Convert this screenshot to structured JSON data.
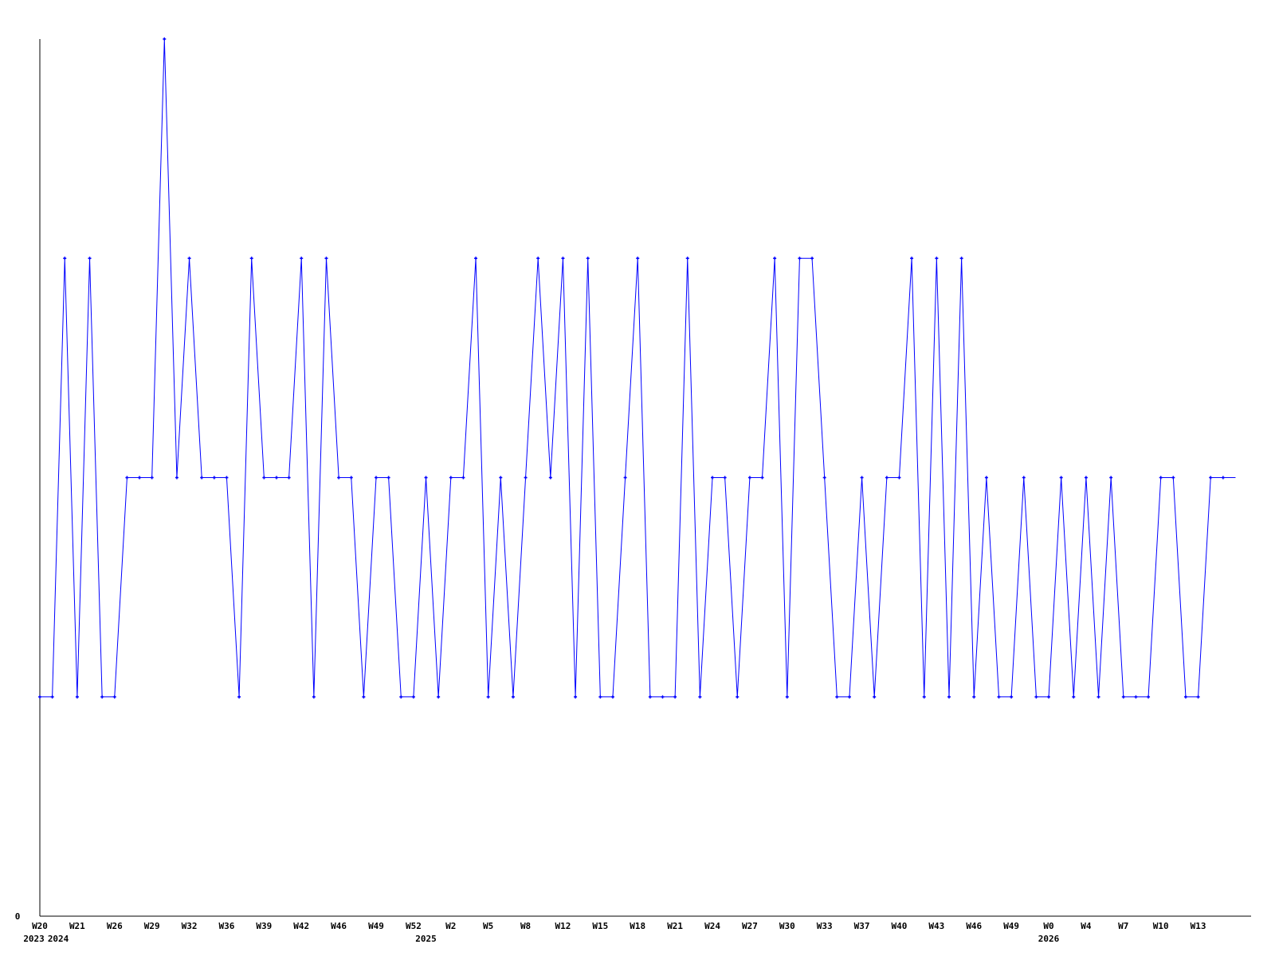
{
  "chart_data": {
    "type": "line",
    "title": "",
    "xlabel": "",
    "ylabel": "",
    "ylim": [
      0,
      4
    ],
    "y_tick_labels": [
      "0"
    ],
    "grid": false,
    "legend": "none",
    "line_color": "#0000ff",
    "axis_color": "#000000",
    "x_tick_labels": [
      {
        "index": 0,
        "label": "W20"
      },
      {
        "index": 3,
        "label": "W21"
      },
      {
        "index": 6,
        "label": "W26"
      },
      {
        "index": 9,
        "label": "W29"
      },
      {
        "index": 12,
        "label": "W32"
      },
      {
        "index": 15,
        "label": "W36"
      },
      {
        "index": 18,
        "label": "W39"
      },
      {
        "index": 21,
        "label": "W42"
      },
      {
        "index": 24,
        "label": "W46"
      },
      {
        "index": 27,
        "label": "W49"
      },
      {
        "index": 30,
        "label": "W52"
      },
      {
        "index": 33,
        "label": "W2"
      },
      {
        "index": 36,
        "label": "W5"
      },
      {
        "index": 39,
        "label": "W8"
      },
      {
        "index": 42,
        "label": "W12"
      },
      {
        "index": 45,
        "label": "W15"
      },
      {
        "index": 48,
        "label": "W18"
      },
      {
        "index": 51,
        "label": "W21"
      },
      {
        "index": 54,
        "label": "W24"
      },
      {
        "index": 57,
        "label": "W27"
      },
      {
        "index": 60,
        "label": "W30"
      },
      {
        "index": 63,
        "label": "W33"
      },
      {
        "index": 66,
        "label": "W37"
      },
      {
        "index": 69,
        "label": "W40"
      },
      {
        "index": 72,
        "label": "W43"
      },
      {
        "index": 75,
        "label": "W46"
      },
      {
        "index": 78,
        "label": "W49"
      },
      {
        "index": 81,
        "label": "W0"
      },
      {
        "index": 84,
        "label": "W4"
      },
      {
        "index": 87,
        "label": "W7"
      },
      {
        "index": 90,
        "label": "W10"
      },
      {
        "index": 93,
        "label": "W13"
      }
    ],
    "year_labels": [
      {
        "index": 0,
        "label": "2023"
      },
      {
        "index": 1,
        "label": "2024"
      },
      {
        "index": 31,
        "label": "2025"
      },
      {
        "index": 81,
        "label": "2026"
      }
    ],
    "values": [
      1,
      1,
      3,
      1,
      3,
      1,
      1,
      2,
      2,
      2,
      4,
      2,
      3,
      2,
      2,
      2,
      1,
      3,
      2,
      2,
      2,
      3,
      1,
      3,
      2,
      2,
      1,
      2,
      2,
      1,
      1,
      2,
      1,
      2,
      2,
      3,
      1,
      2,
      1,
      2,
      3,
      2,
      3,
      1,
      3,
      1,
      1,
      2,
      3,
      1,
      1,
      1,
      3,
      1,
      2,
      2,
      1,
      2,
      2,
      3,
      1,
      3,
      3,
      2,
      1,
      1,
      2,
      1,
      2,
      2,
      3,
      1,
      3,
      1,
      3,
      1,
      2,
      1,
      1,
      2,
      1,
      1,
      2,
      1,
      2,
      1,
      2,
      1,
      1,
      1,
      2,
      2,
      1,
      1,
      2,
      2,
      2
    ]
  }
}
